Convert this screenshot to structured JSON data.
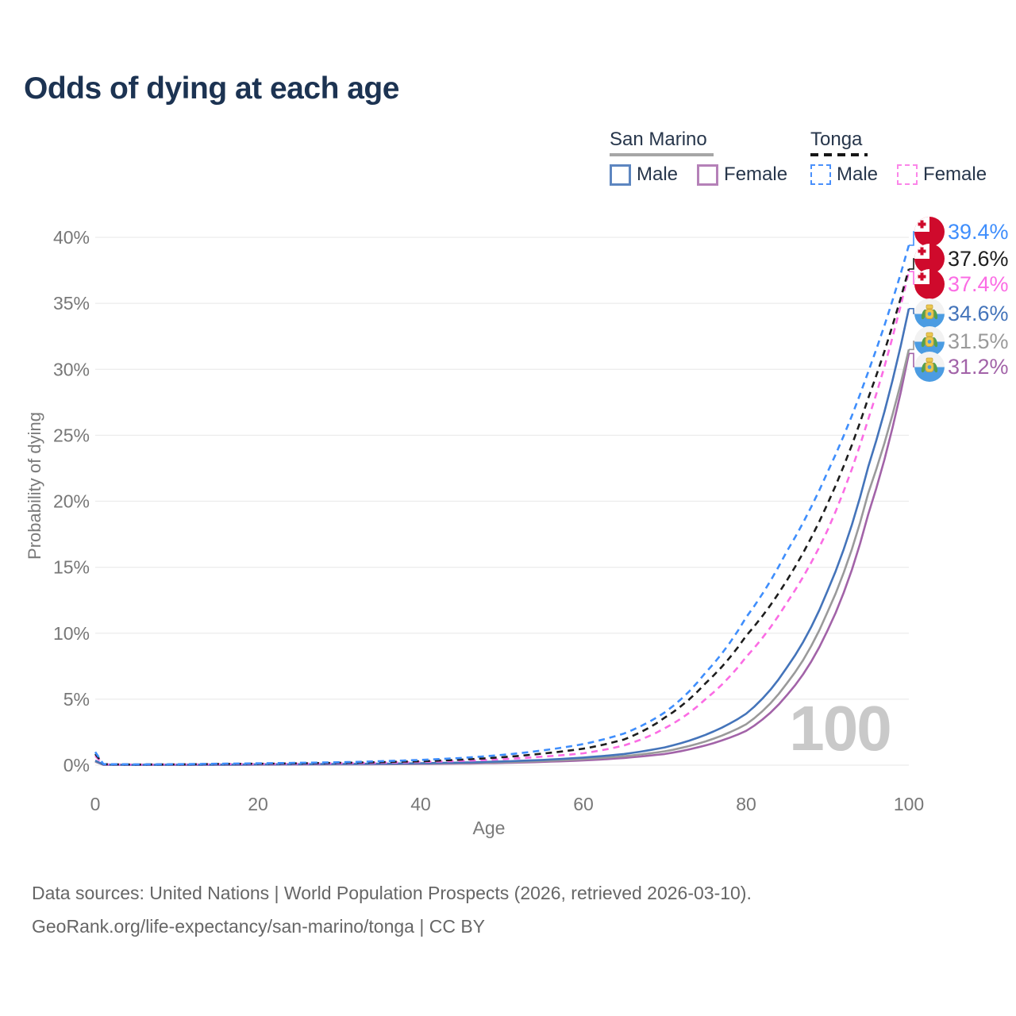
{
  "page": {
    "title": "Odds of dying at each age",
    "footer_line1": "Data sources: United Nations | World Population Prospects (2026, retrieved 2026-03-10).",
    "footer_line2": "GeoRank.org/life-expectancy/san-marino/tonga | CC BY"
  },
  "legend": {
    "groups": [
      {
        "label": "San Marino",
        "line_style": "solid",
        "line_color": "#a6a6a6",
        "items": [
          {
            "label": "Male",
            "color": "#5d86c0"
          },
          {
            "label": "Female",
            "color": "#b581b8"
          }
        ]
      },
      {
        "label": "Tonga",
        "line_style": "dashed",
        "line_color": "#161616",
        "items": [
          {
            "label": "Male",
            "color": "#4a90fb"
          },
          {
            "label": "Female",
            "color": "#fb86e9"
          }
        ]
      }
    ]
  },
  "chart_data": {
    "type": "line",
    "title": "Odds of dying at each age",
    "xlabel": "Age",
    "ylabel": "Probability of dying",
    "xlim": [
      0,
      100
    ],
    "ylim": [
      0,
      40
    ],
    "xticks": [
      "0",
      "20",
      "40",
      "60",
      "80",
      "100"
    ],
    "yticks": [
      "0%",
      "5%",
      "10%",
      "15%",
      "20%",
      "25%",
      "30%",
      "35%",
      "40%"
    ],
    "grid": "horizontal",
    "legend_position": "top-right",
    "age_counter_watermark": "100",
    "ages": [
      0,
      1,
      5,
      10,
      15,
      20,
      25,
      30,
      35,
      40,
      45,
      50,
      55,
      60,
      65,
      70,
      75,
      80,
      85,
      90,
      95,
      100
    ],
    "series": [
      {
        "id": "tonga-male",
        "name": "Tonga Male",
        "country": "Tonga",
        "sex": "Male",
        "style": "dashed",
        "color": "#3f8efc",
        "flag": "tonga",
        "end_label": "39.4%",
        "values": [
          1.0,
          0.08,
          0.06,
          0.07,
          0.11,
          0.14,
          0.18,
          0.22,
          0.3,
          0.4,
          0.55,
          0.78,
          1.12,
          1.6,
          2.4,
          4.0,
          7.0,
          11.2,
          16.2,
          22.2,
          29.8,
          39.4
        ]
      },
      {
        "id": "tonga-both",
        "name": "Tonga Both sexes",
        "country": "Tonga",
        "sex": "Both",
        "style": "dashed",
        "color": "#1d1d1d",
        "flag": "tonga",
        "end_label": "37.6%",
        "values": [
          0.85,
          0.07,
          0.05,
          0.06,
          0.09,
          0.11,
          0.14,
          0.18,
          0.23,
          0.3,
          0.42,
          0.6,
          0.88,
          1.25,
          1.95,
          3.6,
          6.2,
          9.8,
          14.0,
          19.8,
          27.8,
          37.6
        ]
      },
      {
        "id": "tonga-female",
        "name": "Tonga Female",
        "country": "Tonga",
        "sex": "Female",
        "style": "dashed",
        "color": "#fb6ce4",
        "flag": "tonga",
        "end_label": "37.4%",
        "values": [
          0.7,
          0.06,
          0.04,
          0.05,
          0.07,
          0.09,
          0.11,
          0.14,
          0.18,
          0.24,
          0.33,
          0.45,
          0.65,
          0.9,
          1.5,
          2.8,
          5.0,
          8.2,
          12.3,
          17.8,
          26.2,
          37.4
        ]
      },
      {
        "id": "san-marino-male",
        "name": "San Marino Male",
        "country": "San Marino",
        "sex": "Male",
        "style": "solid",
        "color": "#4474ba",
        "flag": "san-marino",
        "end_label": "34.6%",
        "values": [
          0.35,
          0.04,
          0.02,
          0.03,
          0.04,
          0.06,
          0.07,
          0.09,
          0.11,
          0.15,
          0.2,
          0.28,
          0.4,
          0.58,
          0.85,
          1.35,
          2.3,
          3.9,
          7.4,
          13.2,
          22.6,
          34.6
        ]
      },
      {
        "id": "san-marino-both",
        "name": "San Marino Both sexes",
        "country": "San Marino",
        "sex": "Both",
        "style": "solid",
        "color": "#9a9a9a",
        "flag": "san-marino",
        "end_label": "31.5%",
        "values": [
          0.3,
          0.03,
          0.02,
          0.02,
          0.03,
          0.05,
          0.06,
          0.07,
          0.09,
          0.12,
          0.16,
          0.22,
          0.32,
          0.46,
          0.68,
          1.05,
          1.8,
          3.1,
          6.2,
          11.6,
          20.6,
          31.5
        ]
      },
      {
        "id": "san-marino-female",
        "name": "San Marino Female",
        "country": "San Marino",
        "sex": "Female",
        "style": "solid",
        "color": "#a263a8",
        "flag": "san-marino",
        "end_label": "31.2%",
        "values": [
          0.27,
          0.03,
          0.02,
          0.02,
          0.03,
          0.04,
          0.05,
          0.06,
          0.07,
          0.09,
          0.12,
          0.17,
          0.25,
          0.36,
          0.55,
          0.85,
          1.5,
          2.6,
          5.3,
          10.2,
          19.0,
          31.2
        ]
      }
    ]
  }
}
